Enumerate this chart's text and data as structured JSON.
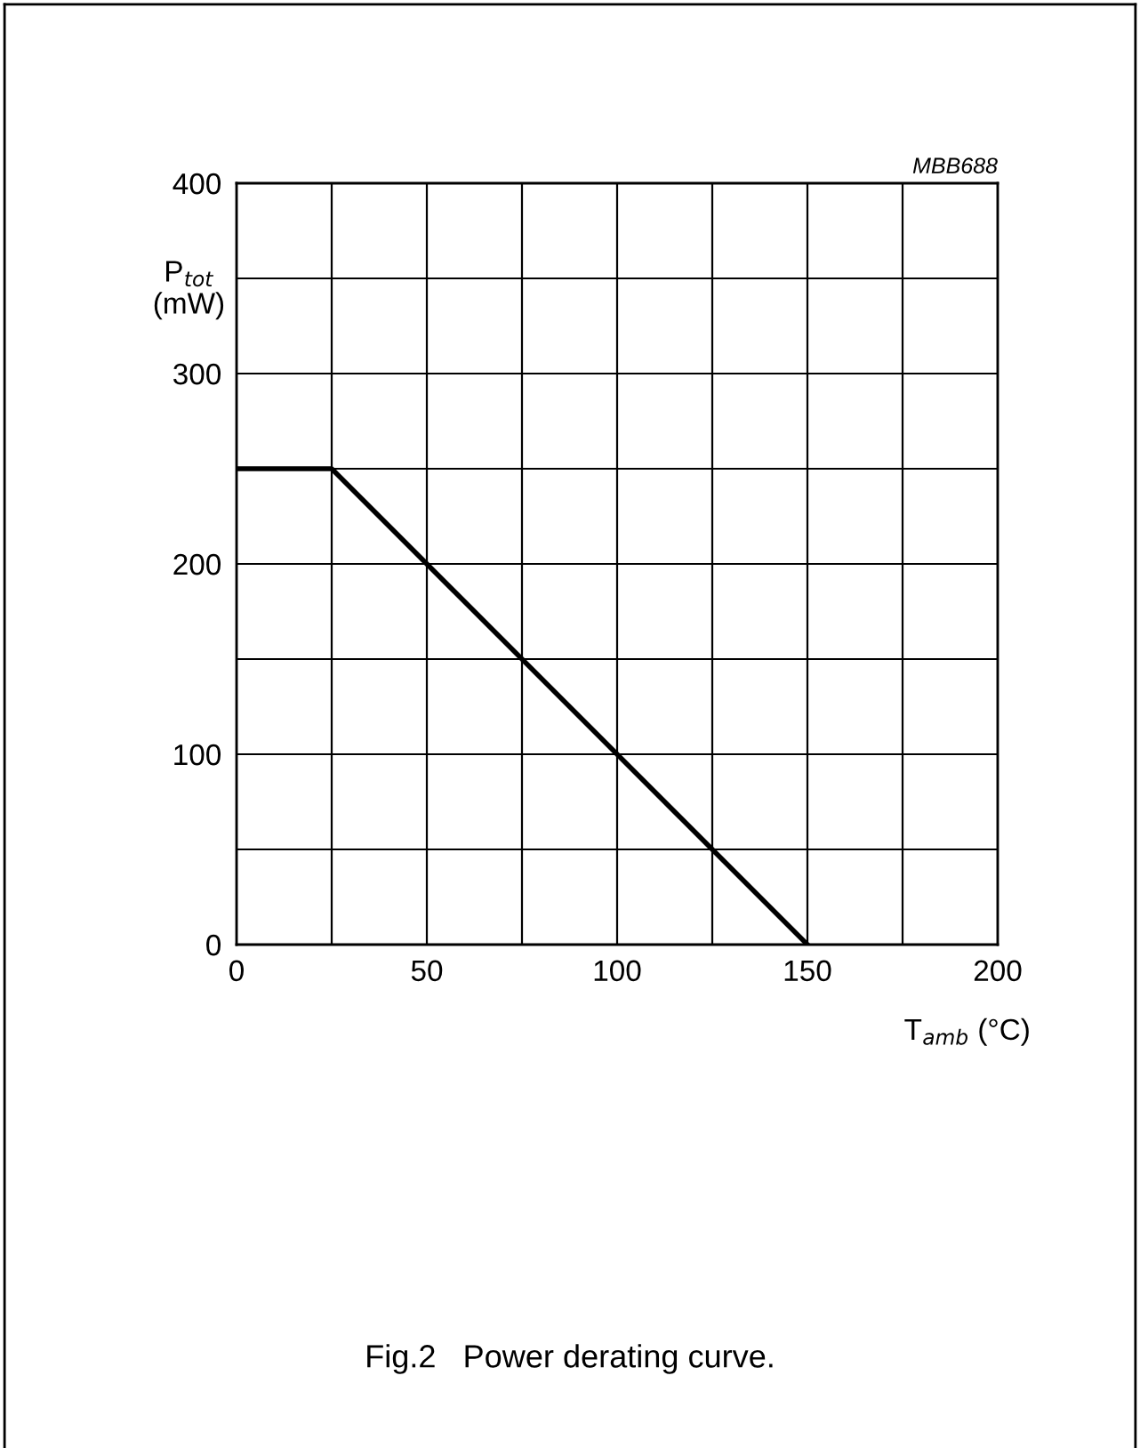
{
  "chart_data": {
    "type": "line",
    "xlabel": "T$_{amb}$ (°C)",
    "ylabel": "P$_{tot}$\n(mW)",
    "x": [
      0,
      25,
      150
    ],
    "series": [
      {
        "color": "#000000",
        "values": [
          250,
          250,
          0
        ]
      }
    ],
    "xlim": [
      0,
      200
    ],
    "ylim": [
      0,
      400
    ],
    "xticks": [
      0,
      {
        "value": 25,
        "label": null
      },
      50,
      {
        "value": 75,
        "label": null
      },
      100,
      {
        "value": 125,
        "label": null
      },
      150,
      {
        "value": 175,
        "label": null
      },
      200
    ],
    "yticks": [
      0,
      {
        "value": 50,
        "label": null
      },
      100,
      {
        "value": 150,
        "label": null
      },
      200,
      {
        "value": 250,
        "label": null
      },
      300,
      {
        "value": 350,
        "label": null
      },
      400
    ],
    "grid": true,
    "marker": "none",
    "line_style": "solid",
    "annotations": [
      "MBB688",
      "Fig.2   Power derating curve."
    ]
  }
}
